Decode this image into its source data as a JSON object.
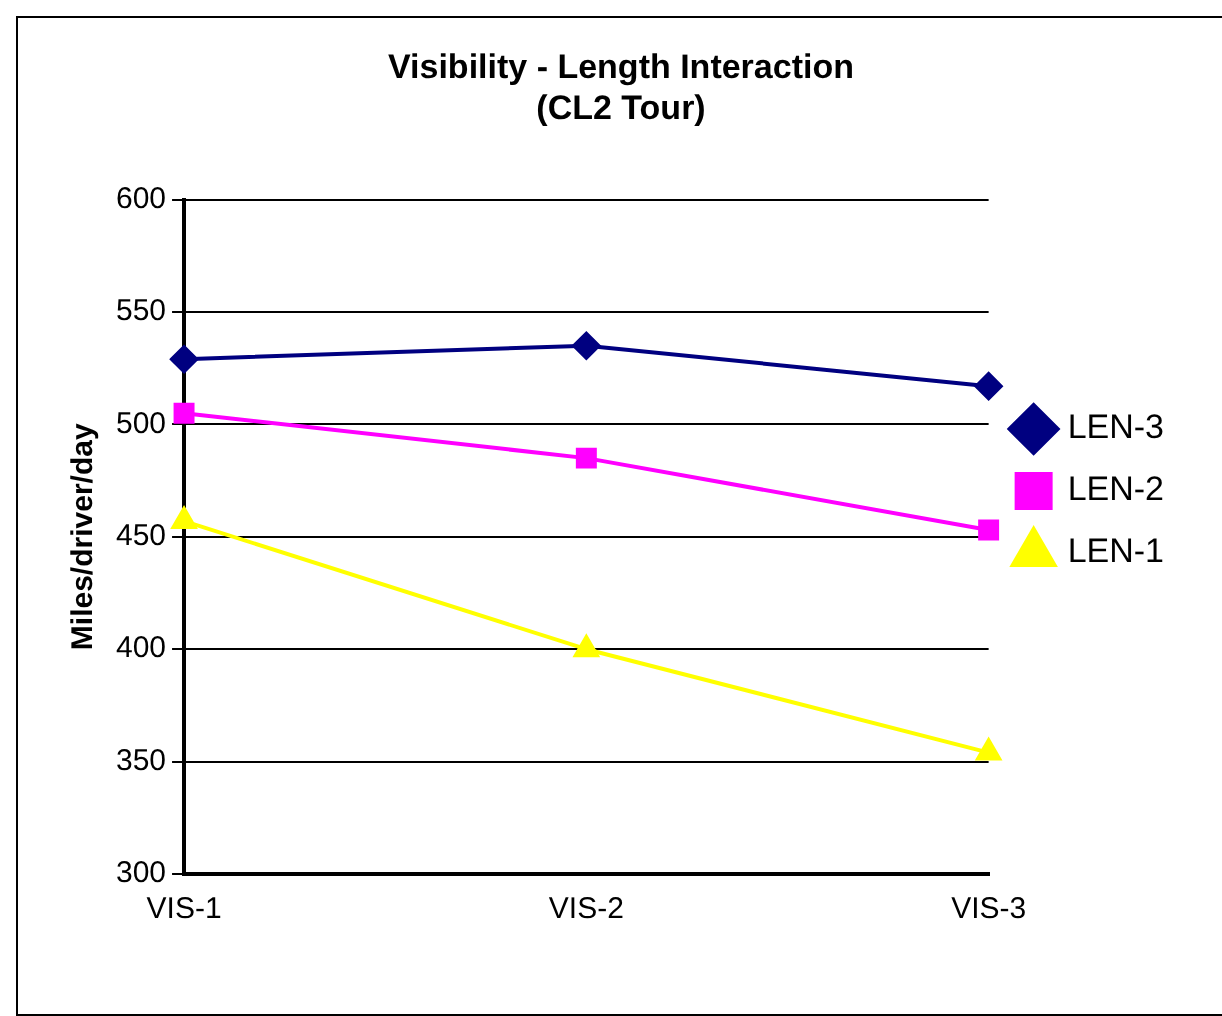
{
  "chart_data": {
    "type": "line",
    "title": [
      "Visibility - Length Interaction",
      "(CL2 Tour)"
    ],
    "ylabel": "Miles/driver/day",
    "categories": [
      "VIS-1",
      "VIS-2",
      "VIS-3"
    ],
    "series": [
      {
        "name": "LEN-3",
        "color": "#000080",
        "marker": "diamond",
        "values": [
          529,
          535,
          517
        ]
      },
      {
        "name": "LEN-2",
        "color": "#ff00ff",
        "marker": "square",
        "values": [
          505,
          485,
          453
        ]
      },
      {
        "name": "LEN-1",
        "color": "#ffff00",
        "marker": "triangle",
        "values": [
          457,
          400,
          354
        ]
      }
    ],
    "ylim": [
      300,
      600
    ],
    "yticks": [
      300,
      350,
      400,
      450,
      500,
      550,
      600
    ],
    "grid": "y",
    "legend": "right",
    "line_style": "solid"
  }
}
